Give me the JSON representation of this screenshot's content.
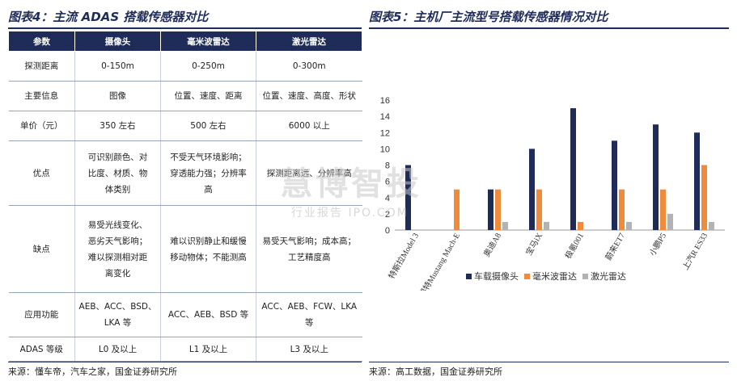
{
  "left": {
    "title": "图表4：主流 ADAS 搭载传感器对比",
    "headers": [
      "参数",
      "摄像头",
      "毫米波雷达",
      "激光雷达"
    ],
    "rows": [
      {
        "param": "探测距离",
        "camera": [
          "0-150m"
        ],
        "radar": [
          "0-250m"
        ],
        "lidar": [
          "0-300m"
        ]
      },
      {
        "param": "主要信息",
        "camera": [
          "图像"
        ],
        "radar": [
          "位置、速度、距离"
        ],
        "lidar": [
          "位置、速度、高度、形状"
        ]
      },
      {
        "param": "单价（元）",
        "camera": [
          "350 左右"
        ],
        "radar": [
          "500 左右"
        ],
        "lidar": [
          "6000 以上"
        ]
      },
      {
        "param": "优点",
        "camera": [
          "可识别颜色、对",
          "比度、材质、物",
          "体类别"
        ],
        "radar": [
          "不受天气环境影响；",
          "穿透能力强；分辨率",
          "高"
        ],
        "lidar": [
          "探测距离远、分辨率高"
        ]
      },
      {
        "param": "缺点",
        "camera": [
          "易受光线变化、",
          "恶劣天气影响；",
          "难以探测相对距",
          "离变化"
        ],
        "radar": [
          "难以识别静止和缓慢",
          "移动物体；不能测高"
        ],
        "lidar": [
          "易受天气影响；成本高；",
          "工艺精度高"
        ]
      },
      {
        "param": "应用功能",
        "camera": [
          "AEB、ACC、BSD、",
          "LKA 等"
        ],
        "radar": [
          "ACC、AEB、BSD 等"
        ],
        "lidar": [
          "ACC、AEB、FCW、LKA 等"
        ]
      },
      {
        "param": "ADAS 等级",
        "camera": [
          "L0 及以上"
        ],
        "radar": [
          "L1 及以上"
        ],
        "lidar": [
          "L3 及以上"
        ]
      }
    ],
    "source": "来源：懂车帝，汽车之家，国金证券研究所"
  },
  "right": {
    "title": "图表5：主机厂主流型号搭载传感器情况对比",
    "source": "来源：高工数据，国金证券研究所"
  },
  "watermark": {
    "main": "慧博智投",
    "sub": "行业报告 IPO.COM"
  },
  "chart_data": {
    "type": "bar",
    "categories": [
      "特斯拉Model 3",
      "福特Mustang Mach-E",
      "奥迪A8",
      "宝马iX",
      "极氪001",
      "蔚来ET7",
      "小鹏P5",
      "上汽R ES33"
    ],
    "series": [
      {
        "name": "车载摄像头",
        "color": "#1f2c5a",
        "values": [
          8,
          0,
          5,
          10,
          15,
          11,
          13,
          12
        ]
      },
      {
        "name": "毫米波雷达",
        "color": "#f08a3c",
        "values": [
          0,
          5,
          5,
          5,
          1,
          5,
          5,
          8
        ]
      },
      {
        "name": "激光雷达",
        "color": "#b3b3b3",
        "values": [
          0,
          0,
          1,
          1,
          0,
          1,
          2,
          1
        ]
      }
    ],
    "ylim": [
      0,
      16
    ],
    "yticks": [
      0,
      2,
      4,
      6,
      8,
      10,
      12,
      14,
      16
    ],
    "legend": "bottom"
  }
}
